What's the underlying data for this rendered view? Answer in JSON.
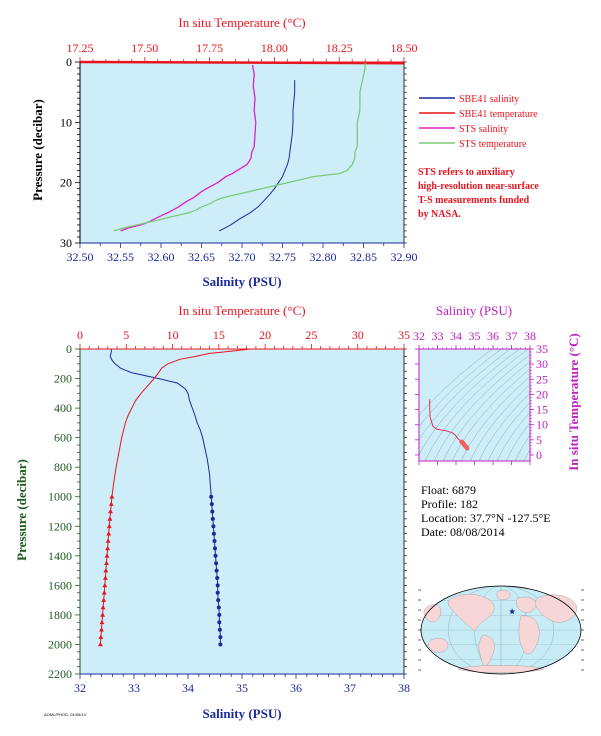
{
  "colors": {
    "salinity_axis": "#1a2a9e",
    "temperature_axis": "#e8141e",
    "pressure_axis": "#1e5a1e",
    "sbe41_salinity": "#1a2a9e",
    "sbe41_temperature": "#e8141e",
    "sts_salinity": "#e020c8",
    "sts_temperature": "#80c878",
    "ts_axis": "#c020c0",
    "plot_bg": "#cdeef8",
    "ocean": "#c8ecf6",
    "land": "#f6d6d6",
    "marker": "#1a2a9e"
  },
  "legend": {
    "sbe41_salinity": "SBE41 salinity",
    "sbe41_temperature": "SBE41 temperature",
    "sts_salinity": "STS salinity",
    "sts_temperature": "STS temperature"
  },
  "note": {
    "line1": "STS refers to auxiliary",
    "line2": "high-resolution near-surface",
    "line3": "T-S measurements funded",
    "line4": "by NASA."
  },
  "info": {
    "float": "Float:  6879",
    "profile": "Profile:  182",
    "location": "Location:  37.7°N  -127.5°E",
    "date": "Date:  08/08/2014"
  },
  "footer_code": "AOML/PHOD, 01/05/14",
  "chart_data": [
    {
      "type": "line",
      "name": "near-surface",
      "title": "",
      "top_label": "In situ Temperature (°C)",
      "xlabel": "Salinity (PSU)",
      "ylabel": "Pressure (decibar)",
      "salinity_lim": [
        32.5,
        32.9
      ],
      "temperature_lim": [
        17.25,
        18.5
      ],
      "pressure_lim": [
        0,
        30
      ],
      "salinity_ticks": [
        "32.50",
        "32.55",
        "32.60",
        "32.65",
        "32.70",
        "32.75",
        "32.80",
        "32.85",
        "32.90"
      ],
      "temperature_ticks": [
        "17.25",
        "17.50",
        "17.75",
        "18.00",
        "18.25",
        "18.50"
      ],
      "pressure_ticks": [
        "0",
        "10",
        "20",
        "30"
      ],
      "series": [
        {
          "key": "sbe41_salinity",
          "axis": "salinity",
          "pressure": [
            3,
            5,
            8,
            10,
            12,
            14,
            16,
            17,
            18,
            19,
            20,
            21,
            22,
            23,
            24,
            25,
            26,
            27,
            28
          ],
          "values": [
            32.765,
            32.765,
            32.763,
            32.763,
            32.762,
            32.76,
            32.758,
            32.756,
            32.753,
            32.75,
            32.745,
            32.74,
            32.734,
            32.727,
            32.72,
            32.71,
            32.697,
            32.686,
            32.672
          ]
        },
        {
          "key": "sbe41_temperature",
          "axis": "temperature",
          "pressure": [
            0,
            0.2
          ],
          "values": [
            17.25,
            18.5
          ]
        },
        {
          "key": "sts_salinity",
          "axis": "salinity",
          "pressure": [
            0.5,
            2,
            4,
            6,
            8,
            10,
            12,
            14,
            15,
            16,
            17,
            17.5,
            18,
            18.5,
            19,
            19.5,
            20,
            20.5,
            21,
            21.5,
            22,
            22.5,
            23,
            23.5,
            24,
            24.5,
            25,
            25.5,
            26,
            26.5,
            27,
            27.5,
            28
          ],
          "values": [
            32.713,
            32.715,
            32.714,
            32.716,
            32.715,
            32.717,
            32.716,
            32.715,
            32.712,
            32.711,
            32.706,
            32.7,
            32.694,
            32.688,
            32.68,
            32.675,
            32.67,
            32.663,
            32.656,
            32.65,
            32.645,
            32.64,
            32.633,
            32.627,
            32.622,
            32.615,
            32.608,
            32.6,
            32.592,
            32.585,
            32.575,
            32.56,
            32.55
          ]
        },
        {
          "key": "sts_temperature",
          "axis": "temperature",
          "pressure": [
            0,
            1,
            3,
            5,
            8,
            10,
            12,
            14,
            15,
            16,
            17,
            18,
            18.5,
            19,
            19.5,
            20,
            20.5,
            21,
            21.5,
            22,
            22.5,
            23,
            23.5,
            24,
            24.5,
            25,
            25.5,
            26,
            26.5,
            27,
            27.5,
            28
          ],
          "values": [
            18.35,
            18.35,
            18.34,
            18.33,
            18.33,
            18.32,
            18.32,
            18.32,
            18.31,
            18.31,
            18.3,
            18.28,
            18.25,
            18.15,
            18.1,
            18.05,
            18.0,
            17.95,
            17.9,
            17.85,
            17.8,
            17.77,
            17.75,
            17.72,
            17.7,
            17.67,
            17.62,
            17.57,
            17.52,
            17.47,
            17.42,
            17.38
          ]
        }
      ]
    },
    {
      "type": "line",
      "name": "full-profile",
      "title": "",
      "top_label": "In situ Temperature (°C)",
      "xlabel": "Salinity (PSU)",
      "ylabel": "Pressure (decibar)",
      "salinity_lim": [
        32,
        38
      ],
      "temperature_lim": [
        0,
        35
      ],
      "pressure_lim": [
        0,
        2200
      ],
      "salinity_ticks": [
        "32",
        "33",
        "34",
        "35",
        "36",
        "37",
        "38"
      ],
      "temperature_ticks": [
        "0",
        "5",
        "10",
        "15",
        "20",
        "25",
        "30",
        "35"
      ],
      "pressure_ticks": [
        "0",
        "200",
        "400",
        "600",
        "800",
        "1000",
        "1200",
        "1400",
        "1600",
        "1800",
        "2000",
        "2200"
      ],
      "series": [
        {
          "key": "sbe41_salinity",
          "axis": "salinity",
          "pressure": [
            0,
            20,
            50,
            80,
            100,
            130,
            160,
            200,
            230,
            270,
            300,
            350,
            400,
            450,
            500,
            550,
            600,
            650,
            700,
            750,
            800,
            850,
            900,
            950,
            1000,
            1050,
            1100,
            1150,
            1200,
            1250,
            1300,
            1350,
            1400,
            1450,
            1500,
            1550,
            1600,
            1650,
            1700,
            1750,
            1800,
            1850,
            1900,
            1950,
            2000
          ],
          "values": [
            32.58,
            32.58,
            32.56,
            32.6,
            32.65,
            32.75,
            32.95,
            33.45,
            33.8,
            33.95,
            34.0,
            34.03,
            34.08,
            34.13,
            34.17,
            34.23,
            34.27,
            34.3,
            34.33,
            34.36,
            34.38,
            34.4,
            34.41,
            34.42,
            34.43,
            34.44,
            34.45,
            34.46,
            34.47,
            34.48,
            34.49,
            34.5,
            34.51,
            34.52,
            34.53,
            34.54,
            34.55,
            34.55,
            34.56,
            34.57,
            34.58,
            34.58,
            34.59,
            34.6,
            34.6
          ]
        },
        {
          "key": "sbe41_temperature",
          "axis": "temperature",
          "pressure": [
            0,
            10,
            20,
            30,
            50,
            70,
            100,
            130,
            160,
            200,
            250,
            300,
            350,
            400,
            450,
            500,
            550,
            600,
            650,
            700,
            750,
            800,
            850,
            900,
            950,
            1000,
            1050,
            1100,
            1150,
            1200,
            1250,
            1300,
            1350,
            1400,
            1450,
            1500,
            1550,
            1600,
            1650,
            1700,
            1750,
            1800,
            1850,
            1900,
            1950,
            2000
          ],
          "values": [
            18.4,
            17.0,
            15.5,
            14.0,
            12.5,
            10.8,
            9.5,
            8.8,
            8.5,
            8.0,
            7.3,
            6.6,
            6.0,
            5.6,
            5.2,
            4.9,
            4.7,
            4.5,
            4.35,
            4.2,
            4.05,
            3.9,
            3.78,
            3.65,
            3.55,
            3.45,
            3.38,
            3.3,
            3.23,
            3.17,
            3.1,
            3.04,
            2.98,
            2.92,
            2.86,
            2.8,
            2.74,
            2.68,
            2.62,
            2.56,
            2.5,
            2.44,
            2.38,
            2.32,
            2.26,
            2.2
          ]
        }
      ],
      "marker_start_pressure": 1000
    },
    {
      "type": "line",
      "name": "ts-diagram",
      "title": "",
      "top_label": "Salinity (PSU)",
      "right_label": "In situ Temperature (°C)",
      "salinity_lim": [
        32,
        38
      ],
      "temperature_lim": [
        -2,
        35
      ],
      "salinity_ticks": [
        "32",
        "33",
        "34",
        "35",
        "36",
        "37",
        "38"
      ],
      "temperature_ticks": [
        "0",
        "5",
        "10",
        "15",
        "20",
        "25",
        "30",
        "35"
      ],
      "series": [
        {
          "key": "ts_curve",
          "salinity": [
            32.58,
            32.58,
            32.6,
            32.75,
            32.95,
            33.45,
            33.8,
            33.95,
            34.03,
            34.13,
            34.23,
            34.3,
            34.36,
            34.4,
            34.43,
            34.47,
            34.52,
            34.56,
            34.6
          ],
          "temperature": [
            18.4,
            15.5,
            12.5,
            9.5,
            8.5,
            8.0,
            7.3,
            6.6,
            6.0,
            5.2,
            4.7,
            4.35,
            4.05,
            3.78,
            3.45,
            3.17,
            2.86,
            2.56,
            2.2
          ]
        }
      ]
    }
  ],
  "map": {
    "marker_lat": 37.7,
    "marker_lon": -127.5
  }
}
